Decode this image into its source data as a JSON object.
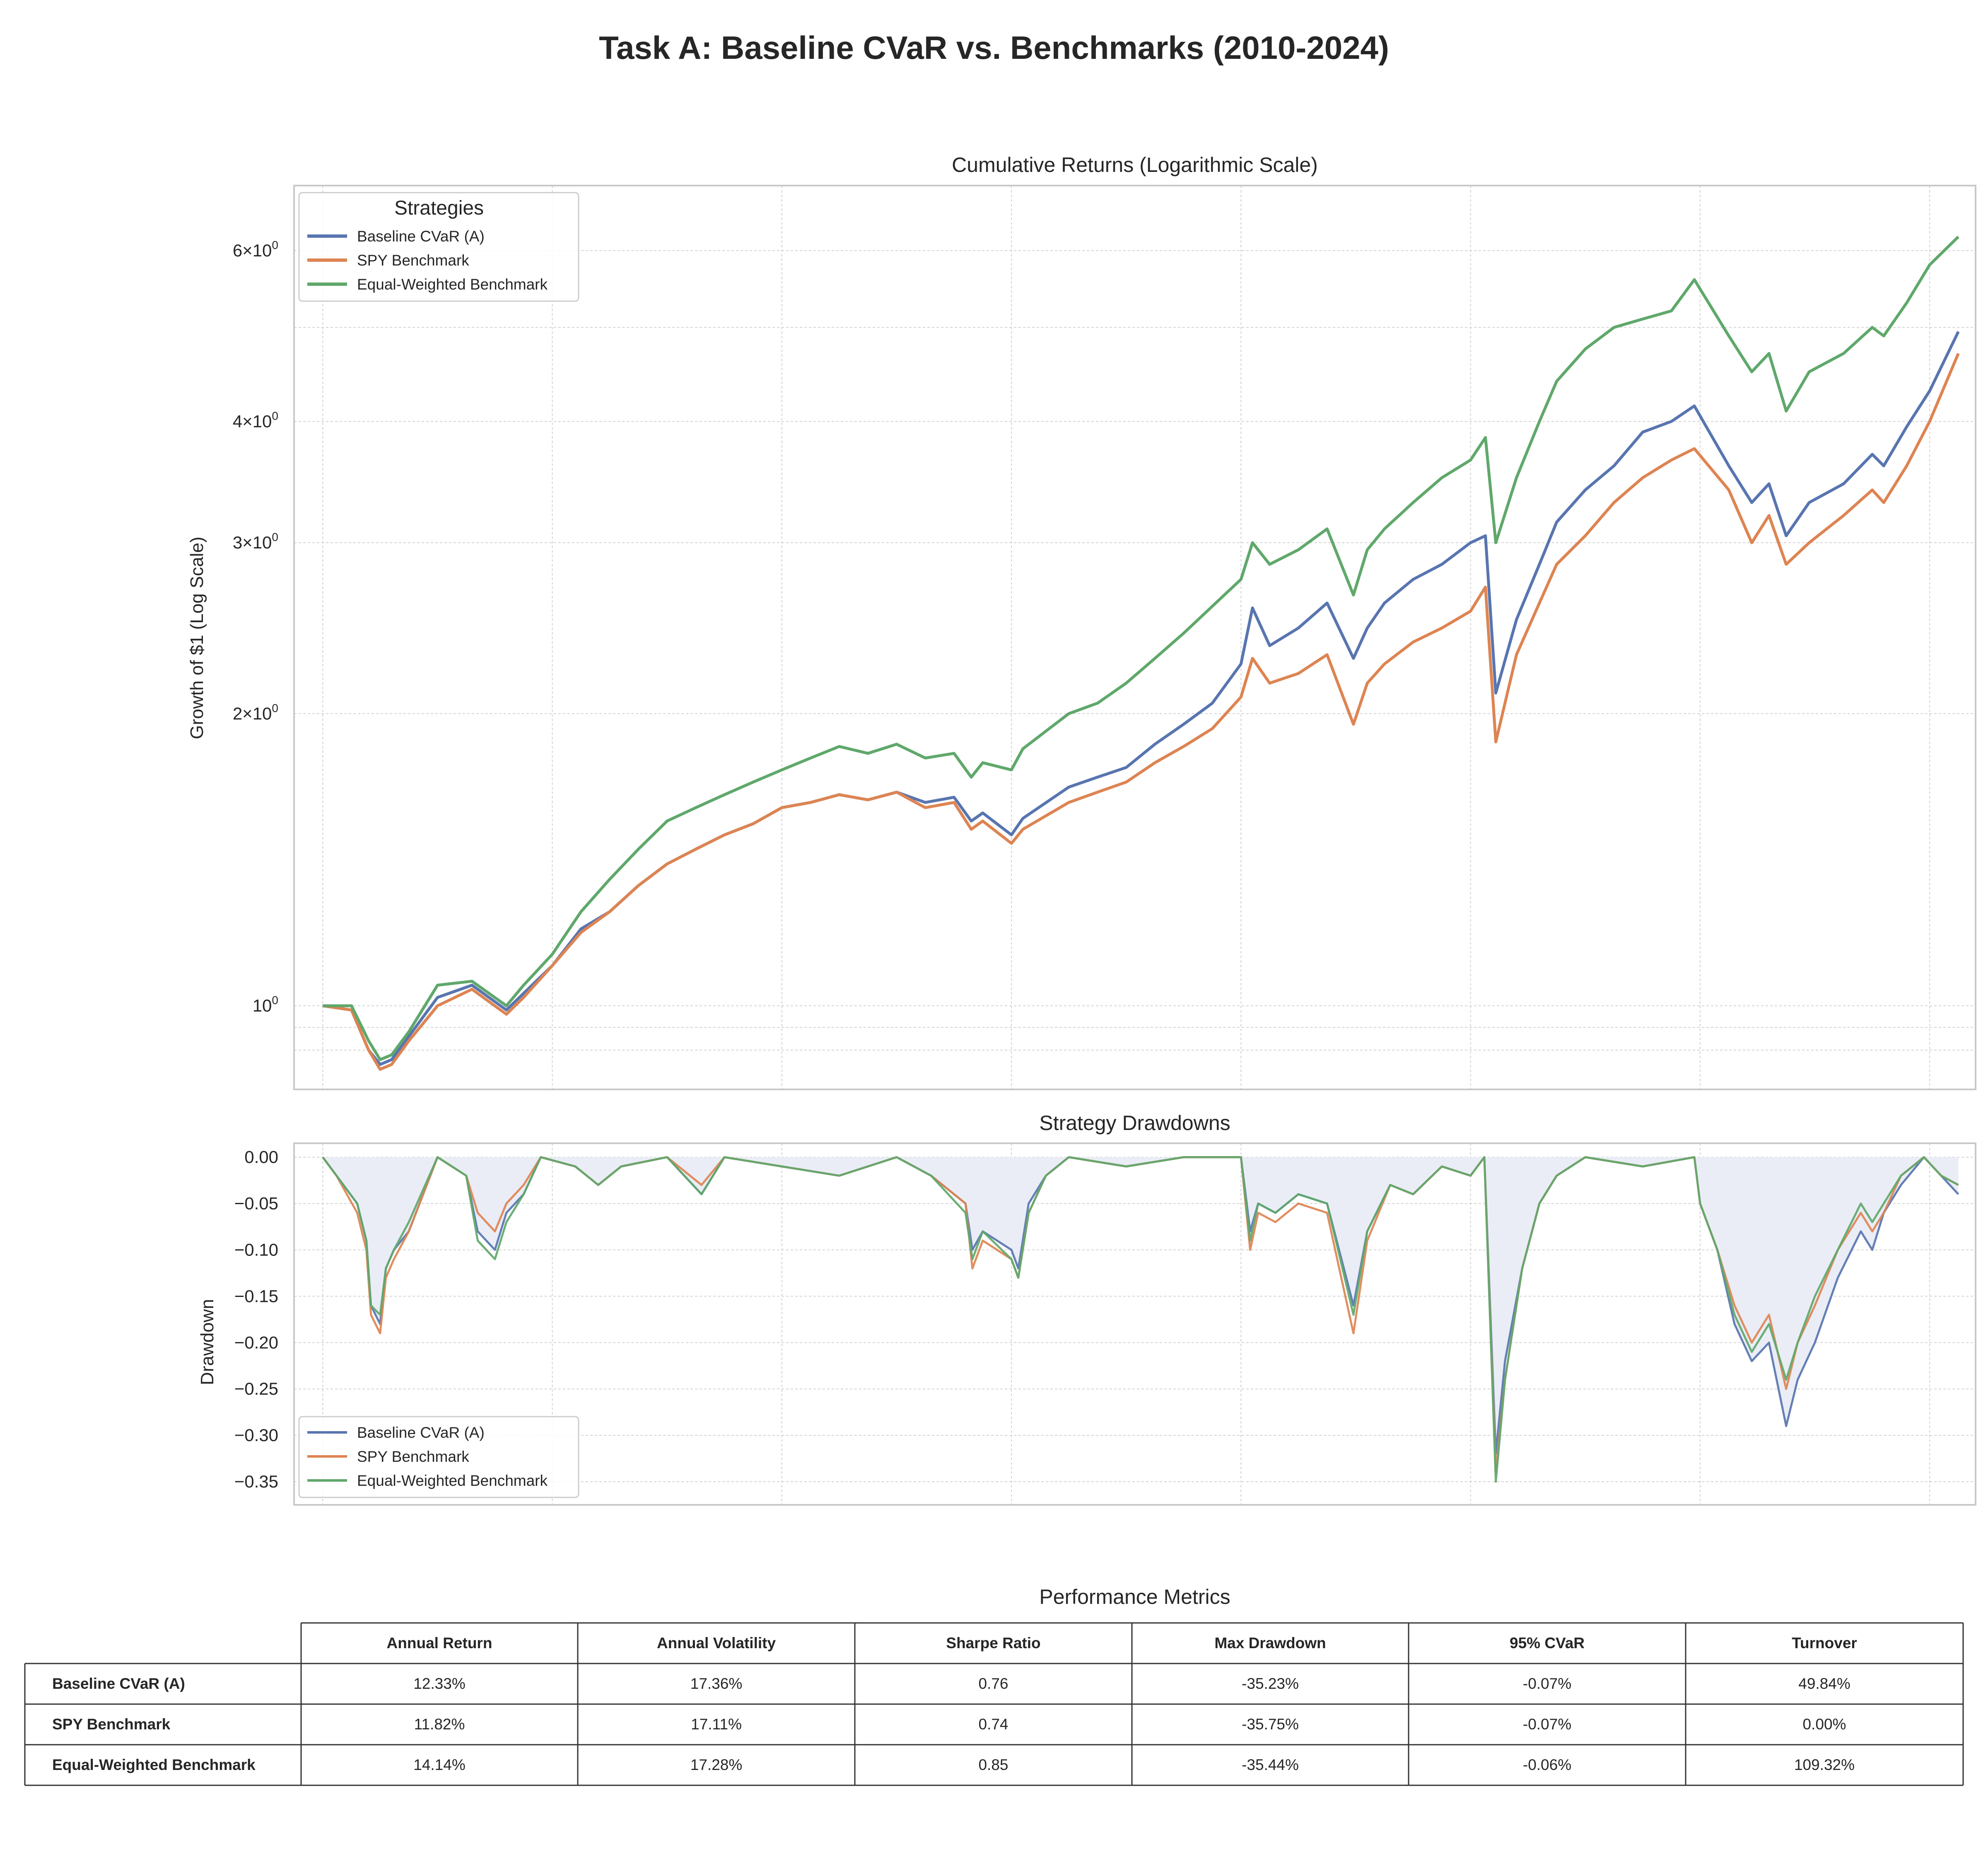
{
  "figure": {
    "title": "Task A: Baseline CVaR vs. Benchmarks (2010-2024)"
  },
  "colors": {
    "baseline": "#5875b0",
    "spy": "#dd8452",
    "equal": "#5fa86b",
    "grid": "#d2d2d2",
    "frame": "#c8c8c8",
    "fill": "#eaedf6",
    "text": "#262626"
  },
  "chart_data": [
    {
      "type": "line",
      "title": "Cumulative Returns (Logarithmic Scale)",
      "ylabel": "Growth of $1 (Log Scale)",
      "yscale": "log",
      "ylim": [
        0.82,
        7.0
      ],
      "xlim": [
        2009.75,
        2024.4
      ],
      "grid": true,
      "legend": {
        "title": "Strategies",
        "position": "top-left"
      },
      "yticks": [
        {
          "value": 1,
          "base": "10",
          "exp": "0"
        },
        {
          "value": 2,
          "base": "2×10",
          "exp": "0"
        },
        {
          "value": 3,
          "base": "3×10",
          "exp": "0"
        },
        {
          "value": 4,
          "base": "4×10",
          "exp": "0"
        },
        {
          "value": 6,
          "base": "6×10",
          "exp": "0"
        }
      ],
      "minor_grid_values": [
        0.9,
        0.95,
        5
      ],
      "xgrid": [
        2010,
        2012,
        2014,
        2016,
        2018,
        2020,
        2022,
        2024
      ],
      "x": [
        2010.0,
        2010.25,
        2010.4,
        2010.5,
        2010.6,
        2010.75,
        2011.0,
        2011.3,
        2011.6,
        2011.75,
        2012.0,
        2012.25,
        2012.5,
        2012.75,
        2013.0,
        2013.25,
        2013.5,
        2013.75,
        2014.0,
        2014.25,
        2014.5,
        2014.75,
        2015.0,
        2015.25,
        2015.5,
        2015.65,
        2015.75,
        2016.0,
        2016.1,
        2016.5,
        2016.75,
        2017.0,
        2017.25,
        2017.5,
        2017.75,
        2018.0,
        2018.1,
        2018.25,
        2018.5,
        2018.75,
        2018.98,
        2019.1,
        2019.25,
        2019.5,
        2019.75,
        2020.0,
        2020.13,
        2020.22,
        2020.4,
        2020.6,
        2020.75,
        2021.0,
        2021.25,
        2021.5,
        2021.75,
        2021.95,
        2022.25,
        2022.45,
        2022.6,
        2022.75,
        2022.95,
        2023.25,
        2023.5,
        2023.6,
        2023.8,
        2024.0,
        2024.25
      ],
      "series": [
        {
          "name": "Baseline CVaR (A)",
          "values": [
            1.0,
            0.99,
            0.9,
            0.87,
            0.88,
            0.93,
            1.02,
            1.05,
            0.99,
            1.03,
            1.1,
            1.2,
            1.25,
            1.33,
            1.4,
            1.45,
            1.5,
            1.54,
            1.6,
            1.62,
            1.65,
            1.63,
            1.66,
            1.62,
            1.64,
            1.55,
            1.58,
            1.5,
            1.56,
            1.68,
            1.72,
            1.76,
            1.86,
            1.95,
            2.05,
            2.25,
            2.57,
            2.35,
            2.45,
            2.6,
            2.28,
            2.45,
            2.6,
            2.75,
            2.85,
            3.0,
            3.05,
            2.1,
            2.5,
            2.85,
            3.15,
            3.4,
            3.6,
            3.9,
            4.0,
            4.15,
            3.6,
            3.3,
            3.45,
            3.05,
            3.3,
            3.45,
            3.7,
            3.6,
            3.95,
            4.3,
            4.95
          ]
        },
        {
          "name": "SPY Benchmark",
          "values": [
            1.0,
            0.99,
            0.9,
            0.86,
            0.87,
            0.92,
            1.0,
            1.04,
            0.98,
            1.02,
            1.1,
            1.19,
            1.25,
            1.33,
            1.4,
            1.45,
            1.5,
            1.54,
            1.6,
            1.62,
            1.65,
            1.63,
            1.66,
            1.6,
            1.62,
            1.52,
            1.55,
            1.47,
            1.52,
            1.62,
            1.66,
            1.7,
            1.78,
            1.85,
            1.93,
            2.08,
            2.28,
            2.15,
            2.2,
            2.3,
            1.95,
            2.15,
            2.25,
            2.37,
            2.45,
            2.55,
            2.7,
            1.87,
            2.3,
            2.6,
            2.85,
            3.05,
            3.3,
            3.5,
            3.65,
            3.75,
            3.4,
            3.0,
            3.2,
            2.85,
            3.0,
            3.2,
            3.4,
            3.3,
            3.6,
            4.0,
            4.7
          ]
        },
        {
          "name": "Equal-Weighted Benchmark",
          "values": [
            1.0,
            1.0,
            0.92,
            0.88,
            0.89,
            0.94,
            1.05,
            1.06,
            1.0,
            1.05,
            1.13,
            1.25,
            1.35,
            1.45,
            1.55,
            1.6,
            1.65,
            1.7,
            1.75,
            1.8,
            1.85,
            1.82,
            1.86,
            1.8,
            1.82,
            1.72,
            1.78,
            1.75,
            1.84,
            2.0,
            2.05,
            2.15,
            2.28,
            2.42,
            2.58,
            2.75,
            3.0,
            2.85,
            2.95,
            3.1,
            2.65,
            2.95,
            3.1,
            3.3,
            3.5,
            3.65,
            3.85,
            3.0,
            3.5,
            4.0,
            4.4,
            4.75,
            5.0,
            5.1,
            5.2,
            5.6,
            4.9,
            4.5,
            4.7,
            4.1,
            4.5,
            4.7,
            5.0,
            4.9,
            5.3,
            5.8,
            6.2
          ]
        }
      ]
    },
    {
      "type": "area",
      "title": "Strategy Drawdowns",
      "ylabel": "Drawdown",
      "ylim": [
        -0.375,
        0.015
      ],
      "xlim": [
        2009.75,
        2024.4
      ],
      "grid": true,
      "legend": {
        "position": "bottom-left"
      },
      "yticks": [
        "0.00",
        "−0.05",
        "−0.10",
        "−0.15",
        "−0.20",
        "−0.25",
        "−0.30",
        "−0.35"
      ],
      "ytick_values": [
        0,
        -0.05,
        -0.1,
        -0.15,
        -0.2,
        -0.25,
        -0.3,
        -0.35
      ],
      "xgrid": [
        2010,
        2012,
        2014,
        2016,
        2018,
        2020,
        2022,
        2024
      ],
      "x": [
        2010.0,
        2010.12,
        2010.3,
        2010.38,
        2010.42,
        2010.5,
        2010.55,
        2010.62,
        2010.75,
        2011.0,
        2011.25,
        2011.35,
        2011.5,
        2011.6,
        2011.75,
        2011.9,
        2012.2,
        2012.4,
        2012.6,
        2013.0,
        2013.3,
        2013.5,
        2014.0,
        2014.5,
        2015.0,
        2015.3,
        2015.6,
        2015.66,
        2015.75,
        2016.0,
        2016.06,
        2016.15,
        2016.3,
        2016.5,
        2017.0,
        2017.5,
        2018.0,
        2018.08,
        2018.15,
        2018.3,
        2018.5,
        2018.75,
        2018.98,
        2019.1,
        2019.3,
        2019.5,
        2019.75,
        2020.0,
        2020.12,
        2020.22,
        2020.3,
        2020.45,
        2020.6,
        2020.75,
        2021.0,
        2021.5,
        2021.95,
        2022.0,
        2022.15,
        2022.3,
        2022.45,
        2022.6,
        2022.75,
        2022.85,
        2023.0,
        2023.2,
        2023.4,
        2023.5,
        2023.6,
        2023.75,
        2023.95,
        2024.1,
        2024.25
      ],
      "series": [
        {
          "name": "Baseline CVaR (A)",
          "values": [
            0.0,
            -0.02,
            -0.05,
            -0.09,
            -0.16,
            -0.18,
            -0.12,
            -0.1,
            -0.08,
            0.0,
            -0.02,
            -0.08,
            -0.1,
            -0.06,
            -0.04,
            0.0,
            -0.01,
            -0.03,
            -0.01,
            0.0,
            -0.04,
            0.0,
            -0.01,
            -0.02,
            0.0,
            -0.02,
            -0.05,
            -0.1,
            -0.08,
            -0.1,
            -0.12,
            -0.05,
            -0.02,
            0.0,
            -0.01,
            0.0,
            0.0,
            -0.08,
            -0.05,
            -0.06,
            -0.04,
            -0.05,
            -0.16,
            -0.08,
            -0.03,
            -0.04,
            -0.01,
            -0.02,
            0.0,
            -0.32,
            -0.22,
            -0.12,
            -0.05,
            -0.02,
            0.0,
            -0.01,
            0.0,
            -0.05,
            -0.1,
            -0.18,
            -0.22,
            -0.2,
            -0.29,
            -0.24,
            -0.2,
            -0.13,
            -0.08,
            -0.1,
            -0.06,
            -0.03,
            0.0,
            -0.02,
            -0.04
          ]
        },
        {
          "name": "SPY Benchmark",
          "values": [
            0.0,
            -0.02,
            -0.06,
            -0.1,
            -0.17,
            -0.19,
            -0.13,
            -0.11,
            -0.08,
            0.0,
            -0.02,
            -0.06,
            -0.08,
            -0.05,
            -0.03,
            0.0,
            -0.01,
            -0.03,
            -0.01,
            0.0,
            -0.03,
            0.0,
            -0.01,
            -0.02,
            0.0,
            -0.02,
            -0.05,
            -0.12,
            -0.09,
            -0.11,
            -0.13,
            -0.06,
            -0.02,
            0.0,
            -0.01,
            0.0,
            0.0,
            -0.1,
            -0.06,
            -0.07,
            -0.05,
            -0.06,
            -0.19,
            -0.09,
            -0.03,
            -0.04,
            -0.01,
            -0.02,
            0.0,
            -0.34,
            -0.24,
            -0.12,
            -0.05,
            -0.02,
            0.0,
            -0.01,
            0.0,
            -0.05,
            -0.1,
            -0.16,
            -0.2,
            -0.17,
            -0.25,
            -0.2,
            -0.16,
            -0.1,
            -0.06,
            -0.08,
            -0.06,
            -0.02,
            0.0,
            -0.02,
            -0.03
          ]
        },
        {
          "name": "Equal-Weighted Benchmark",
          "values": [
            0.0,
            -0.02,
            -0.05,
            -0.09,
            -0.16,
            -0.17,
            -0.12,
            -0.1,
            -0.07,
            0.0,
            -0.02,
            -0.09,
            -0.11,
            -0.07,
            -0.04,
            0.0,
            -0.01,
            -0.03,
            -0.01,
            0.0,
            -0.04,
            0.0,
            -0.01,
            -0.02,
            0.0,
            -0.02,
            -0.06,
            -0.11,
            -0.08,
            -0.11,
            -0.13,
            -0.06,
            -0.02,
            0.0,
            -0.01,
            0.0,
            0.0,
            -0.09,
            -0.05,
            -0.06,
            -0.04,
            -0.05,
            -0.17,
            -0.08,
            -0.03,
            -0.04,
            -0.01,
            -0.02,
            0.0,
            -0.35,
            -0.24,
            -0.12,
            -0.05,
            -0.02,
            0.0,
            -0.01,
            0.0,
            -0.05,
            -0.1,
            -0.17,
            -0.21,
            -0.18,
            -0.24,
            -0.2,
            -0.15,
            -0.1,
            -0.05,
            -0.07,
            -0.05,
            -0.02,
            0.0,
            -0.02,
            -0.03
          ]
        }
      ]
    },
    {
      "type": "table",
      "title": "Performance Metrics",
      "columns": [
        "Annual Return",
        "Annual Volatility",
        "Sharpe Ratio",
        "Max Drawdown",
        "95% CVaR",
        "Turnover"
      ],
      "rows": [
        {
          "label": "Baseline CVaR (A)",
          "cells": [
            "12.33%",
            "17.36%",
            "0.76",
            "-35.23%",
            "-0.07%",
            "49.84%"
          ]
        },
        {
          "label": "SPY Benchmark",
          "cells": [
            "11.82%",
            "17.11%",
            "0.74",
            "-35.75%",
            "-0.07%",
            "0.00%"
          ]
        },
        {
          "label": "Equal-Weighted Benchmark",
          "cells": [
            "14.14%",
            "17.28%",
            "0.85",
            "-35.44%",
            "-0.06%",
            "109.32%"
          ]
        }
      ]
    }
  ]
}
